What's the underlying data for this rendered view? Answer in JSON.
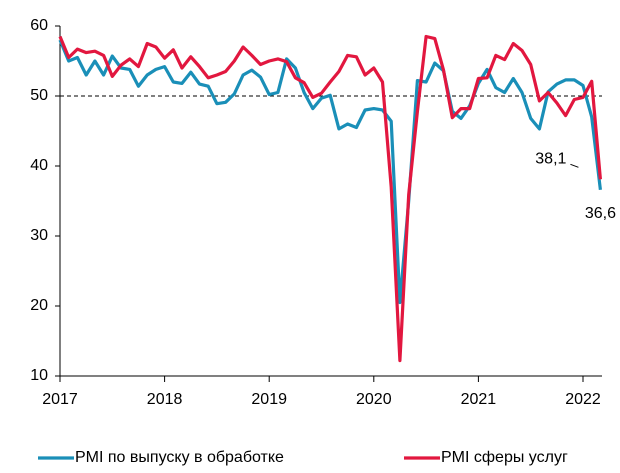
{
  "chart_data": {
    "type": "line",
    "categories": [
      "2017",
      null,
      null,
      null,
      null,
      null,
      null,
      null,
      null,
      null,
      null,
      null,
      "2018",
      null,
      null,
      null,
      null,
      null,
      null,
      null,
      null,
      null,
      null,
      null,
      "2019",
      null,
      null,
      null,
      null,
      null,
      null,
      null,
      null,
      null,
      null,
      null,
      "2020",
      null,
      null,
      null,
      null,
      null,
      null,
      null,
      null,
      null,
      null,
      null,
      "2021",
      null,
      null,
      null,
      null,
      null,
      null,
      null,
      null,
      null,
      null,
      null,
      "2022",
      null,
      null
    ],
    "series": [
      {
        "name": "PMI по выпуску в обработке",
        "color": "#1a8fb8",
        "values": [
          58,
          55,
          55.5,
          53,
          55,
          53,
          55.7,
          54,
          53.8,
          51.4,
          53,
          53.8,
          54.2,
          52,
          51.8,
          53.4,
          51.7,
          51.4,
          48.9,
          49.1,
          50.3,
          53,
          53.7,
          52.7,
          50.2,
          50.5,
          55.3,
          54,
          50.5,
          48.2,
          49.7,
          50.1,
          45.3,
          46,
          45.5,
          48,
          48.2,
          48,
          46.4,
          20.5,
          35,
          52.2,
          52,
          54.7,
          53.6,
          47.8,
          46.8,
          48.6,
          51.8,
          53.8,
          51.2,
          50.5,
          52.5,
          50.5,
          46.8,
          45.3,
          50.6,
          51.7,
          52.3,
          52.3,
          51.5,
          47,
          36.6
        ],
        "value_labels": [
          null,
          null,
          null,
          null,
          null,
          null,
          null,
          null,
          null,
          null,
          null,
          null,
          null,
          null,
          null,
          null,
          null,
          null,
          null,
          null,
          null,
          null,
          null,
          null,
          null,
          null,
          null,
          null,
          null,
          null,
          null,
          null,
          null,
          null,
          null,
          null,
          null,
          null,
          null,
          null,
          null,
          null,
          null,
          null,
          null,
          null,
          null,
          null,
          null,
          null,
          null,
          null,
          null,
          null,
          null,
          null,
          null,
          null,
          null,
          null,
          null,
          null,
          "36,6"
        ]
      },
      {
        "name": "PMI сферы услуг",
        "color": "#e2173f",
        "values": [
          58.5,
          55.5,
          56.7,
          56.2,
          56.4,
          55.8,
          52.8,
          54.4,
          55.3,
          54.2,
          57.5,
          57,
          55.4,
          56.6,
          54,
          55.6,
          54.2,
          52.6,
          53,
          53.5,
          55,
          57,
          55.8,
          54.5,
          55,
          55.3,
          54.9,
          52.6,
          51.9,
          49.8,
          50.4,
          52,
          53.5,
          55.8,
          55.6,
          53,
          54,
          52,
          37,
          12.2,
          35.9,
          47.8,
          58.5,
          58.2,
          53.7,
          46.9,
          48.2,
          48.2,
          52.5,
          52.6,
          55.8,
          55.2,
          57.5,
          56.5,
          54.5,
          49.3,
          50.5,
          49,
          47.2,
          49.5,
          49.8,
          52.1,
          38.1
        ],
        "value_labels": [
          null,
          null,
          null,
          null,
          null,
          null,
          null,
          null,
          null,
          null,
          null,
          null,
          null,
          null,
          null,
          null,
          null,
          null,
          null,
          null,
          null,
          null,
          null,
          null,
          null,
          null,
          null,
          null,
          null,
          null,
          null,
          null,
          null,
          null,
          null,
          null,
          null,
          null,
          null,
          null,
          null,
          null,
          null,
          null,
          null,
          null,
          null,
          null,
          null,
          null,
          null,
          null,
          null,
          null,
          null,
          null,
          null,
          null,
          null,
          null,
          null,
          null,
          "38,1"
        ]
      }
    ],
    "ylim": [
      10,
      60
    ],
    "yticks": [
      10,
      20,
      30,
      40,
      50,
      60
    ],
    "reference_line": 50,
    "grid": false,
    "legend": "bottom"
  }
}
